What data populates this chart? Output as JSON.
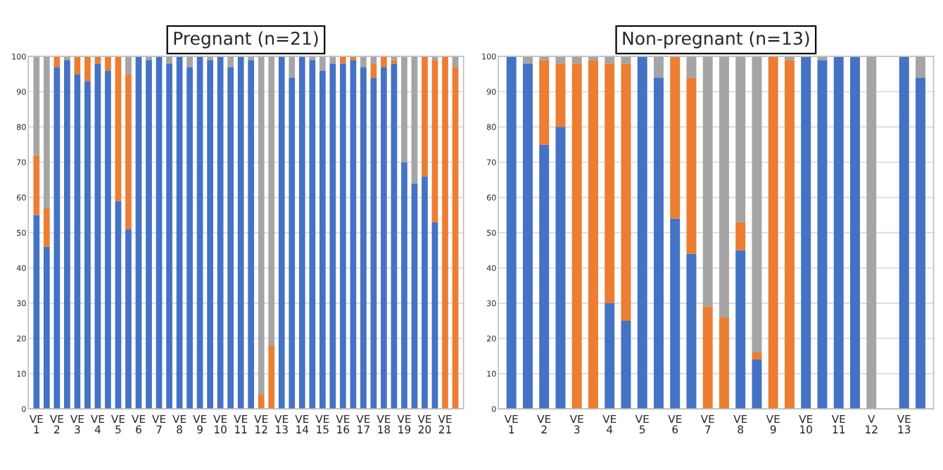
{
  "chart_data": [
    {
      "type": "bar",
      "title": "Pregnant (n=21)",
      "stacked": true,
      "grid": "y",
      "ylim": [
        0,
        100
      ],
      "yticks": [
        0,
        10,
        20,
        30,
        40,
        50,
        60,
        70,
        80,
        90,
        100
      ],
      "categories": [
        "VE\n1",
        null,
        "VE\n2",
        null,
        "VE\n3",
        null,
        "VE\n4",
        null,
        "VE\n5",
        null,
        "VE\n6",
        null,
        "VE\n7",
        null,
        "VE\n8",
        null,
        "VE\n9",
        null,
        "VE\n10",
        null,
        "VE\n11",
        null,
        "VE\n12",
        null,
        "VE\n13",
        null,
        "VE\n14",
        null,
        "VE\n15",
        null,
        "VE\n16",
        null,
        "VE\n17",
        null,
        "VE\n18",
        null,
        "VE\n19",
        null,
        "VE\n20",
        null,
        "VE\n21",
        null
      ],
      "series": [
        {
          "color": "#4472c4",
          "values": [
            55,
            46,
            97,
            99,
            95,
            93,
            98,
            96,
            59,
            51,
            100,
            99,
            100,
            98,
            100,
            97,
            100,
            99,
            100,
            97,
            100,
            99,
            0,
            0,
            100,
            94,
            100,
            99,
            96,
            98,
            98,
            99,
            97,
            94,
            97,
            98,
            70,
            64,
            66,
            53,
            0,
            0
          ]
        },
        {
          "color": "#ed7d31",
          "values": [
            17,
            11,
            3,
            0,
            5,
            7,
            2,
            4,
            41,
            44,
            0,
            0,
            0,
            0,
            0,
            0,
            0,
            0,
            0,
            0,
            0,
            0,
            4,
            18,
            0,
            0,
            0,
            0,
            0,
            0,
            2,
            1,
            0,
            4,
            3,
            1,
            0,
            0,
            34,
            46,
            100,
            97
          ]
        },
        {
          "color": "#a5a5a5",
          "values": [
            28,
            43,
            0,
            1,
            0,
            0,
            0,
            0,
            0,
            5,
            0,
            1,
            0,
            2,
            0,
            3,
            0,
            1,
            0,
            3,
            0,
            1,
            96,
            82,
            0,
            6,
            0,
            1,
            4,
            2,
            0,
            0,
            3,
            2,
            0,
            1,
            30,
            36,
            0,
            1,
            0,
            3
          ]
        }
      ]
    },
    {
      "type": "bar",
      "title": "Non-pregnant (n=13)",
      "stacked": true,
      "grid": "y",
      "ylim": [
        0,
        100
      ],
      "yticks": [
        0,
        10,
        20,
        30,
        40,
        50,
        60,
        70,
        80,
        90,
        100
      ],
      "categories": [
        "VE\n1",
        null,
        "VE\n2",
        null,
        "VE\n3",
        null,
        "VE\n4",
        null,
        "VE\n5",
        null,
        "VE\n6",
        null,
        "VE\n7",
        null,
        "VE\n8",
        null,
        "VE\n9",
        null,
        "VE\n10",
        null,
        "VE\n11",
        null,
        "V\n12",
        null,
        "VE\n13",
        null
      ],
      "series": [
        {
          "color": "#4472c4",
          "values": [
            100,
            98,
            75,
            80,
            0,
            0,
            30,
            25,
            100,
            94,
            54,
            44,
            0,
            0,
            45,
            14,
            0,
            0,
            100,
            99,
            100,
            100,
            0,
            null,
            100,
            94
          ]
        },
        {
          "color": "#ed7d31",
          "values": [
            0,
            0,
            24,
            18,
            98,
            99,
            68,
            73,
            0,
            0,
            46,
            50,
            29,
            26,
            8,
            2,
            100,
            99,
            0,
            0,
            0,
            0,
            0,
            null,
            0,
            0
          ]
        },
        {
          "color": "#a5a5a5",
          "values": [
            0,
            2,
            1,
            2,
            2,
            1,
            2,
            2,
            0,
            6,
            0,
            6,
            71,
            74,
            47,
            84,
            0,
            1,
            0,
            1,
            0,
            0,
            100,
            null,
            0,
            6
          ]
        }
      ]
    }
  ]
}
